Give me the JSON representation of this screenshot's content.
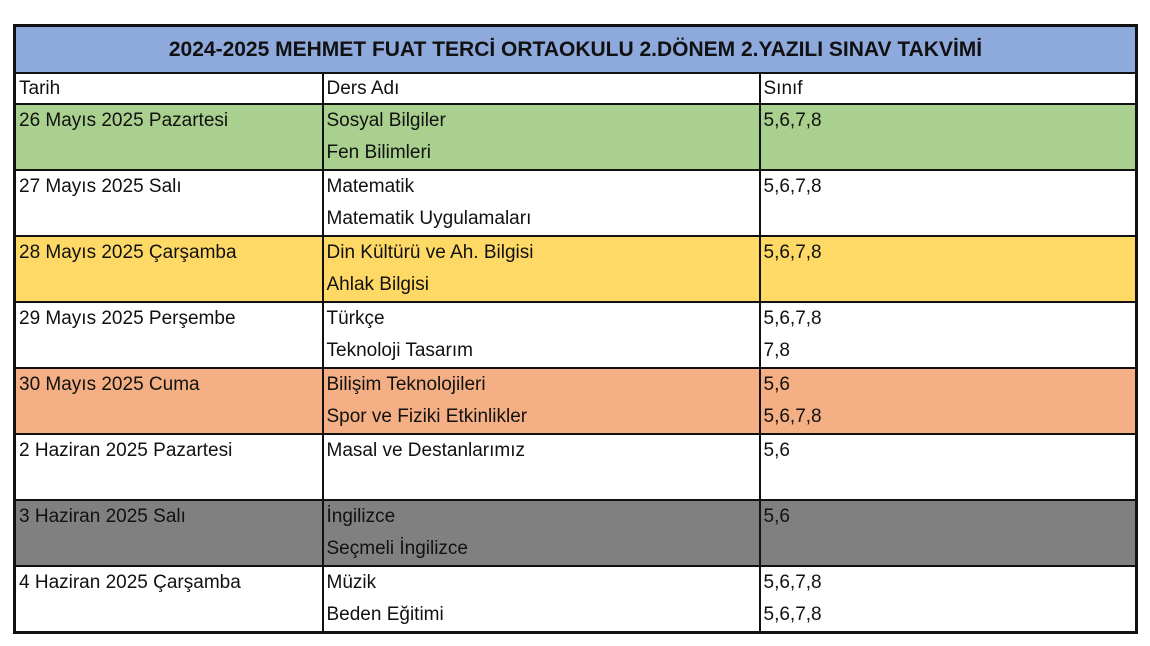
{
  "title": "2024-2025 MEHMET FUAT TERCİ ORTAOKULU 2.DÖNEM 2.YAZILI SINAV TAKVİMİ",
  "colors": {
    "title_bg": "#8EA9DB",
    "green": "#A9D08E",
    "yellow": "#FFD966",
    "orange": "#F4B084",
    "gray": "#808080",
    "white": "#FFFFFF"
  },
  "headers": {
    "date": "Tarih",
    "course": "Ders Adı",
    "grade": "Sınıf"
  },
  "rows": [
    {
      "date": "26 Mayıs 2025 Pazartesi",
      "color": "#A9D08E",
      "courses": [
        "Sosyal Bilgiler",
        "Fen Bilimleri"
      ],
      "grades": [
        "5,6,7,8",
        ""
      ]
    },
    {
      "date": "27 Mayıs 2025 Salı",
      "color": "#FFFFFF",
      "courses": [
        "Matematik",
        "Matematik Uygulamaları"
      ],
      "grades": [
        "5,6,7,8",
        ""
      ]
    },
    {
      "date": "28 Mayıs 2025 Çarşamba",
      "color": "#FFD966",
      "courses": [
        "Din Kültürü ve Ah. Bilgisi",
        "Ahlak Bilgisi"
      ],
      "grades": [
        "5,6,7,8",
        ""
      ]
    },
    {
      "date": "29 Mayıs 2025 Perşembe",
      "color": "#FFFFFF",
      "courses": [
        "Türkçe",
        "Teknoloji Tasarım"
      ],
      "grades": [
        "5,6,7,8",
        "7,8"
      ]
    },
    {
      "date": "30 Mayıs 2025 Cuma",
      "color": "#F4B084",
      "courses": [
        "Bilişim Teknolojileri",
        "Spor ve Fiziki Etkinlikler"
      ],
      "grades": [
        "5,6",
        "5,6,7,8"
      ]
    },
    {
      "date": "2 Haziran 2025 Pazartesi",
      "color": "#FFFFFF",
      "courses": [
        "Masal ve Destanlarımız",
        ""
      ],
      "grades": [
        "5,6",
        ""
      ]
    },
    {
      "date": "3 Haziran 2025 Salı",
      "color": "#808080",
      "courses": [
        "İngilizce",
        "Seçmeli İngilizce"
      ],
      "grades": [
        "5,6",
        ""
      ]
    },
    {
      "date": "4 Haziran 2025 Çarşamba",
      "color": "#FFFFFF",
      "courses": [
        "Müzik",
        "Beden Eğitimi"
      ],
      "grades": [
        "5,6,7,8",
        "5,6,7,8"
      ]
    }
  ]
}
